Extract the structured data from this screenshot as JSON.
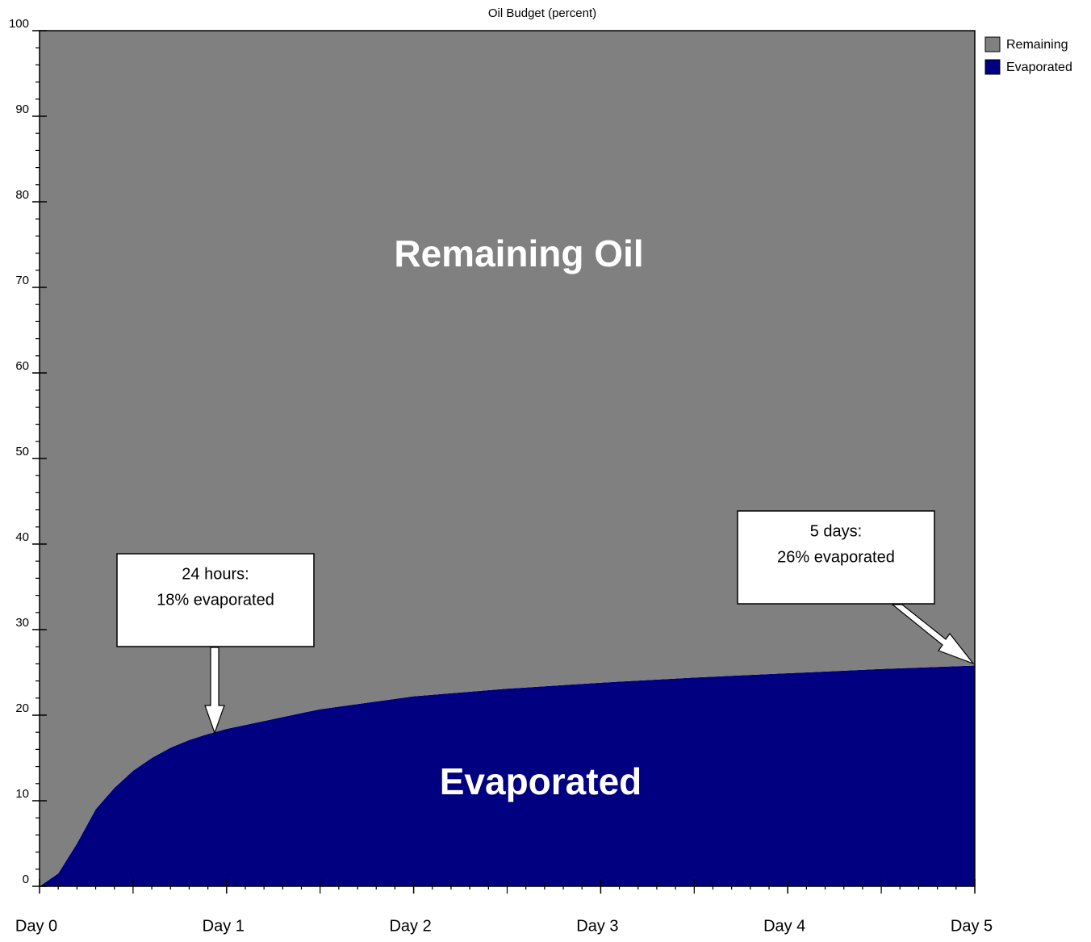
{
  "chart_data": {
    "type": "stacked_area",
    "title": "Oil Budget (percent)",
    "x": [
      0,
      0.1,
      0.2,
      0.3,
      0.4,
      0.5,
      0.6,
      0.7,
      0.8,
      0.9,
      1,
      1.5,
      2,
      2.5,
      3,
      3.5,
      4,
      4.5,
      5
    ],
    "series": [
      {
        "name": "Remaining",
        "color": "#808080",
        "values": [
          100,
          98.5,
          95,
          91,
          88.5,
          86.5,
          85,
          83.8,
          82.9,
          82.2,
          81.6,
          79.3,
          77.8,
          76.9,
          76.2,
          75.6,
          75.1,
          74.6,
          74.2
        ]
      },
      {
        "name": "Evaporated",
        "color": "#000080",
        "values": [
          0,
          1.5,
          5,
          9,
          11.5,
          13.5,
          15,
          16.2,
          17.1,
          17.8,
          18.4,
          20.7,
          22.2,
          23.1,
          23.8,
          24.4,
          24.9,
          25.4,
          25.8
        ]
      }
    ],
    "xlim": [
      0,
      5
    ],
    "xticks": [
      {
        "value": 0,
        "label": "Day 0"
      },
      {
        "value": 1,
        "label": "Day 1"
      },
      {
        "value": 2,
        "label": "Day 2"
      },
      {
        "value": 3,
        "label": "Day 3"
      },
      {
        "value": 4,
        "label": "Day 4"
      },
      {
        "value": 5,
        "label": "Day 5"
      }
    ],
    "ylim": [
      0,
      100
    ],
    "yticks": [
      0,
      10,
      20,
      30,
      40,
      50,
      60,
      70,
      80,
      90,
      100
    ],
    "legend": "upper right outside",
    "annotations": [
      {
        "text": "Remaining Oil"
      },
      {
        "text": "Evaporated"
      },
      {
        "lines": [
          "24 hours:",
          "18% evaporated"
        ]
      },
      {
        "lines": [
          "5 days:",
          "26% evaporated"
        ]
      }
    ]
  }
}
